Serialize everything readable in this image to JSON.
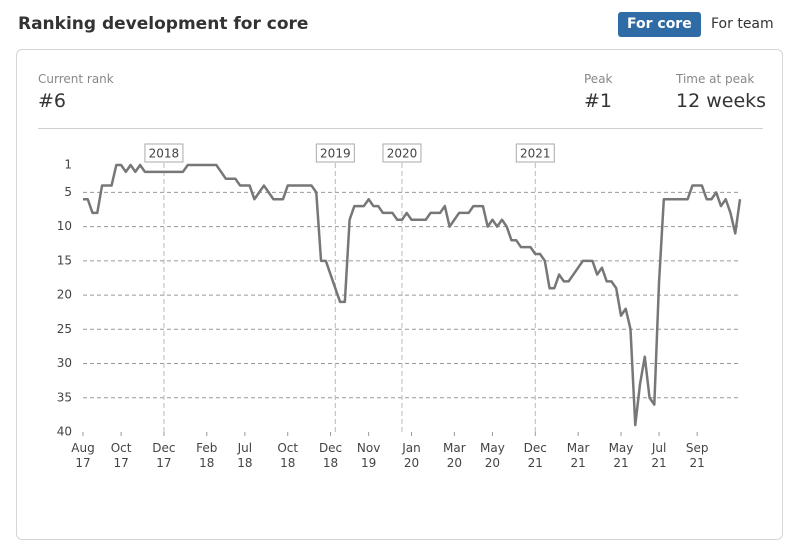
{
  "header": {
    "title": "Ranking development for core",
    "tabs": [
      "For core",
      "For team"
    ]
  },
  "stats": [
    {
      "label": "Current rank",
      "value": "#6"
    },
    {
      "label": "Peak",
      "value": "#1"
    },
    {
      "label": "Time at peak",
      "value": "12 weeks"
    }
  ],
  "chart_data": {
    "type": "line",
    "color": "#777777",
    "y_reversed": true,
    "grid": true,
    "values": [
      6,
      6,
      8,
      8,
      4,
      4,
      4,
      1,
      1,
      2,
      1,
      2,
      1,
      2,
      2,
      2,
      2,
      2,
      2,
      2,
      2,
      2,
      1,
      1,
      1,
      1,
      1,
      1,
      1,
      2,
      3,
      3,
      3,
      4,
      4,
      4,
      6,
      5,
      4,
      5,
      6,
      6,
      6,
      4,
      4,
      4,
      4,
      4,
      4,
      5,
      15,
      15,
      17,
      19,
      21,
      21,
      9,
      7,
      7,
      7,
      6,
      7,
      7,
      8,
      8,
      8,
      9,
      9,
      8,
      9,
      9,
      9,
      9,
      8,
      8,
      8,
      7,
      10,
      9,
      8,
      8,
      8,
      7,
      7,
      7,
      10,
      9,
      10,
      9,
      10,
      12,
      12,
      13,
      13,
      13,
      14,
      14,
      15,
      19,
      19,
      17,
      18,
      18,
      17,
      16,
      15,
      15,
      15,
      17,
      16,
      18,
      18,
      19,
      23,
      22,
      25,
      39,
      33,
      29,
      35,
      36,
      18,
      6,
      6,
      6,
      6,
      6,
      6,
      4,
      4,
      4,
      6,
      6,
      5,
      7,
      6,
      8,
      11,
      6
    ],
    "xlim": [
      0,
      138
    ],
    "xticks": [
      {
        "value": 0,
        "label": "Aug 17"
      },
      {
        "value": 8,
        "label": "Oct 17"
      },
      {
        "value": 17,
        "label": "Dec 17"
      },
      {
        "value": 26,
        "label": "Feb 18"
      },
      {
        "value": 34,
        "label": "Jul 18"
      },
      {
        "value": 43,
        "label": "Oct 18"
      },
      {
        "value": 52,
        "label": "Dec 18"
      },
      {
        "value": 60,
        "label": "Nov 19"
      },
      {
        "value": 69,
        "label": "Jan 20"
      },
      {
        "value": 78,
        "label": "Mar 20"
      },
      {
        "value": 86,
        "label": "May 20"
      },
      {
        "value": 95,
        "label": "Dec 21"
      },
      {
        "value": 104,
        "label": "Mar 21"
      },
      {
        "value": 113,
        "label": "May 21"
      },
      {
        "value": 121,
        "label": "Jul 21"
      },
      {
        "value": 129,
        "label": "Sep 21"
      }
    ],
    "ylim": [
      1,
      40
    ],
    "yticks": [
      1,
      5,
      10,
      15,
      20,
      25,
      30,
      35,
      40
    ],
    "annotations": [
      {
        "x": 17,
        "label": "2018"
      },
      {
        "x": 53,
        "label": "2019"
      },
      {
        "x": 67,
        "label": "2020"
      },
      {
        "x": 95,
        "label": "2021"
      }
    ]
  }
}
